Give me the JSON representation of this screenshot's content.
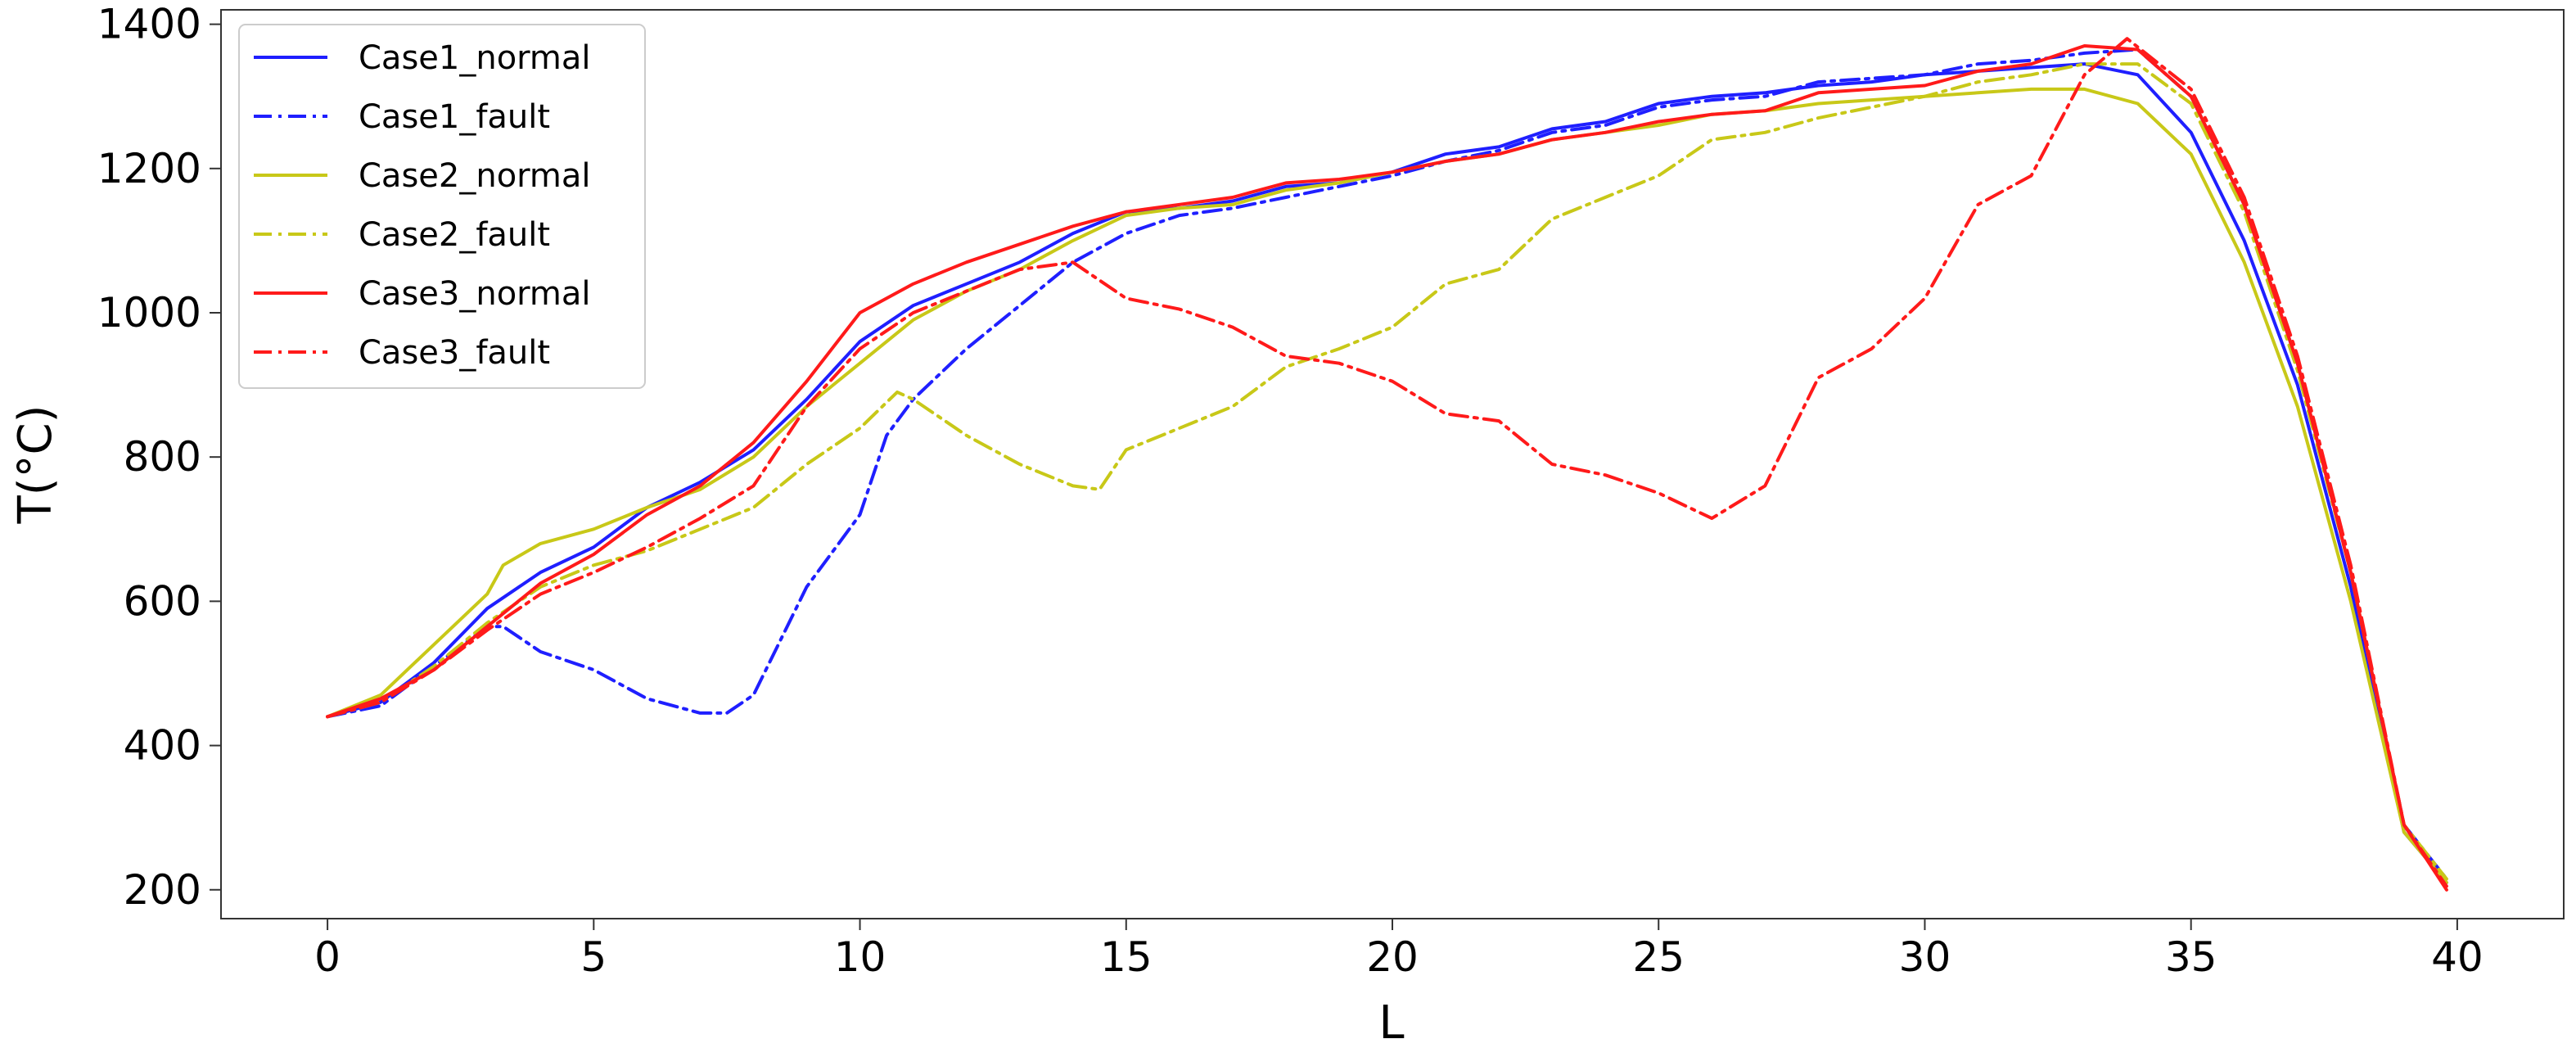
{
  "chart_data": {
    "type": "line",
    "title": "",
    "xlabel": "L",
    "ylabel": "T(°C)",
    "xlim": [
      -2,
      42
    ],
    "ylim": [
      160,
      1420
    ],
    "xticks": [
      0,
      5,
      10,
      15,
      20,
      25,
      30,
      35,
      40
    ],
    "yticks": [
      200,
      400,
      600,
      800,
      1000,
      1200,
      1400
    ],
    "grid": false,
    "legend_position": "top-left",
    "series": [
      {
        "name": "Case1_normal",
        "color": "#1f1fff",
        "dash": "solid",
        "x": [
          0,
          1,
          2,
          3,
          4,
          5,
          6,
          7,
          8,
          9,
          10,
          11,
          12,
          13,
          14,
          15,
          16,
          17,
          18,
          19,
          20,
          21,
          22,
          23,
          24,
          25,
          26,
          27,
          28,
          29,
          30,
          31,
          32,
          33,
          34,
          35,
          36,
          37,
          38,
          39,
          39.8
        ],
        "y": [
          440,
          460,
          515,
          590,
          640,
          675,
          730,
          765,
          810,
          880,
          960,
          1010,
          1040,
          1070,
          1110,
          1140,
          1145,
          1155,
          1175,
          1180,
          1195,
          1220,
          1230,
          1255,
          1265,
          1290,
          1300,
          1305,
          1315,
          1320,
          1330,
          1335,
          1340,
          1345,
          1330,
          1250,
          1100,
          900,
          620,
          280,
          210
        ]
      },
      {
        "name": "Case1_fault",
        "color": "#1f1fff",
        "dash": "dashdot",
        "x": [
          0,
          1,
          2,
          3,
          3.3,
          4,
          5,
          6,
          7,
          7.5,
          8,
          9,
          10,
          10.5,
          11,
          12,
          13,
          14,
          15,
          16,
          17,
          18,
          19,
          20,
          21,
          22,
          23,
          24,
          25,
          26,
          27,
          28,
          29,
          30,
          31,
          32,
          33,
          34,
          35,
          36,
          37,
          38,
          39,
          39.8
        ],
        "y": [
          440,
          455,
          510,
          565,
          565,
          530,
          505,
          465,
          445,
          445,
          470,
          620,
          720,
          830,
          880,
          950,
          1010,
          1070,
          1110,
          1135,
          1145,
          1160,
          1175,
          1190,
          1210,
          1225,
          1250,
          1260,
          1285,
          1295,
          1300,
          1320,
          1325,
          1330,
          1345,
          1350,
          1360,
          1365,
          1300,
          1150,
          930,
          640,
          290,
          215
        ]
      },
      {
        "name": "Case2_normal",
        "color": "#c8c818",
        "dash": "solid",
        "x": [
          0,
          1,
          2,
          3,
          3.3,
          4,
          5,
          6,
          7,
          8,
          9,
          10,
          11,
          12,
          13,
          14,
          15,
          16,
          17,
          18,
          19,
          20,
          21,
          22,
          23,
          24,
          25,
          26,
          27,
          28,
          29,
          30,
          31,
          32,
          33,
          34,
          35,
          36,
          37,
          38,
          39,
          39.8
        ],
        "y": [
          440,
          470,
          540,
          610,
          650,
          680,
          700,
          730,
          755,
          800,
          870,
          930,
          990,
          1030,
          1060,
          1100,
          1135,
          1145,
          1150,
          1170,
          1180,
          1195,
          1210,
          1220,
          1240,
          1250,
          1260,
          1275,
          1280,
          1290,
          1295,
          1300,
          1305,
          1310,
          1310,
          1290,
          1220,
          1070,
          870,
          600,
          280,
          210
        ]
      },
      {
        "name": "Case2_fault",
        "color": "#c8c818",
        "dash": "dashdot",
        "x": [
          0,
          1,
          2,
          3,
          4,
          5,
          6,
          7,
          8,
          9,
          10,
          10.7,
          11,
          12,
          13,
          14,
          14.5,
          15,
          16,
          17,
          18,
          19,
          20,
          21,
          22,
          23,
          24,
          25,
          26,
          27,
          28,
          29,
          30,
          31,
          32,
          33,
          34,
          35,
          36,
          37,
          38,
          39,
          39.8
        ],
        "y": [
          440,
          460,
          510,
          570,
          620,
          650,
          670,
          700,
          730,
          790,
          840,
          890,
          880,
          830,
          790,
          760,
          755,
          810,
          840,
          870,
          925,
          950,
          980,
          1040,
          1060,
          1130,
          1160,
          1190,
          1240,
          1250,
          1270,
          1285,
          1300,
          1320,
          1330,
          1345,
          1345,
          1290,
          1140,
          920,
          640,
          290,
          215
        ]
      },
      {
        "name": "Case3_normal",
        "color": "#ff1a1a",
        "dash": "solid",
        "x": [
          0,
          1,
          2,
          3,
          4,
          5,
          6,
          7,
          8,
          9,
          10,
          11,
          12,
          13,
          14,
          15,
          16,
          17,
          18,
          19,
          20,
          21,
          22,
          23,
          24,
          25,
          26,
          27,
          28,
          29,
          30,
          31,
          32,
          33,
          34,
          35,
          36,
          37,
          38,
          39,
          39.8
        ],
        "y": [
          440,
          465,
          505,
          565,
          625,
          665,
          720,
          760,
          820,
          905,
          1000,
          1040,
          1070,
          1095,
          1120,
          1140,
          1150,
          1160,
          1180,
          1185,
          1195,
          1210,
          1220,
          1240,
          1250,
          1265,
          1275,
          1280,
          1305,
          1310,
          1315,
          1335,
          1345,
          1370,
          1365,
          1300,
          1150,
          930,
          640,
          290,
          200
        ]
      },
      {
        "name": "Case3_fault",
        "color": "#ff1a1a",
        "dash": "dashdot",
        "x": [
          0,
          1,
          2,
          3,
          4,
          5,
          6,
          7,
          8,
          9,
          10,
          11,
          12,
          13,
          14,
          15,
          16,
          17,
          18,
          19,
          20,
          21,
          22,
          23,
          24,
          25,
          26,
          27,
          28,
          29,
          30,
          31,
          32,
          33,
          33.8,
          35,
          36,
          37,
          38,
          39,
          39.8
        ],
        "y": [
          440,
          460,
          505,
          560,
          610,
          640,
          675,
          715,
          760,
          870,
          950,
          1000,
          1030,
          1060,
          1070,
          1020,
          1005,
          980,
          940,
          930,
          905,
          860,
          850,
          790,
          775,
          750,
          715,
          760,
          910,
          950,
          1020,
          1150,
          1190,
          1330,
          1380,
          1310,
          1160,
          940,
          650,
          290,
          205
        ]
      }
    ]
  }
}
